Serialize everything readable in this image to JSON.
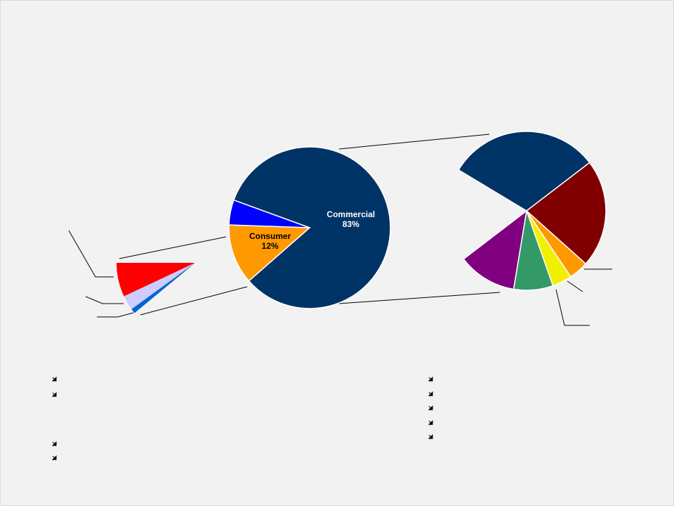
{
  "chart_data": [
    {
      "type": "pie",
      "categories": [
        null,
        null,
        null
      ],
      "values": [
        7,
        3,
        1
      ],
      "colors": [
        "#ff0000",
        "#ccccff",
        "#0066cc"
      ]
    },
    {
      "type": "pie",
      "categories": [
        "Commercial",
        "Consumer",
        null
      ],
      "values": [
        83,
        12,
        5
      ],
      "value_labels": [
        "83%",
        "12%",
        null
      ],
      "colors": [
        "#003366",
        "#ff9900",
        "#0000ff"
      ]
    },
    {
      "type": "pie",
      "categories": [
        null,
        null,
        null,
        null,
        null,
        null
      ],
      "values": [
        31,
        22,
        4,
        4,
        8,
        12
      ],
      "colors": [
        "#003366",
        "#800000",
        "#ff9900",
        "#f0f000",
        "#339966",
        "#800080"
      ]
    }
  ]
}
